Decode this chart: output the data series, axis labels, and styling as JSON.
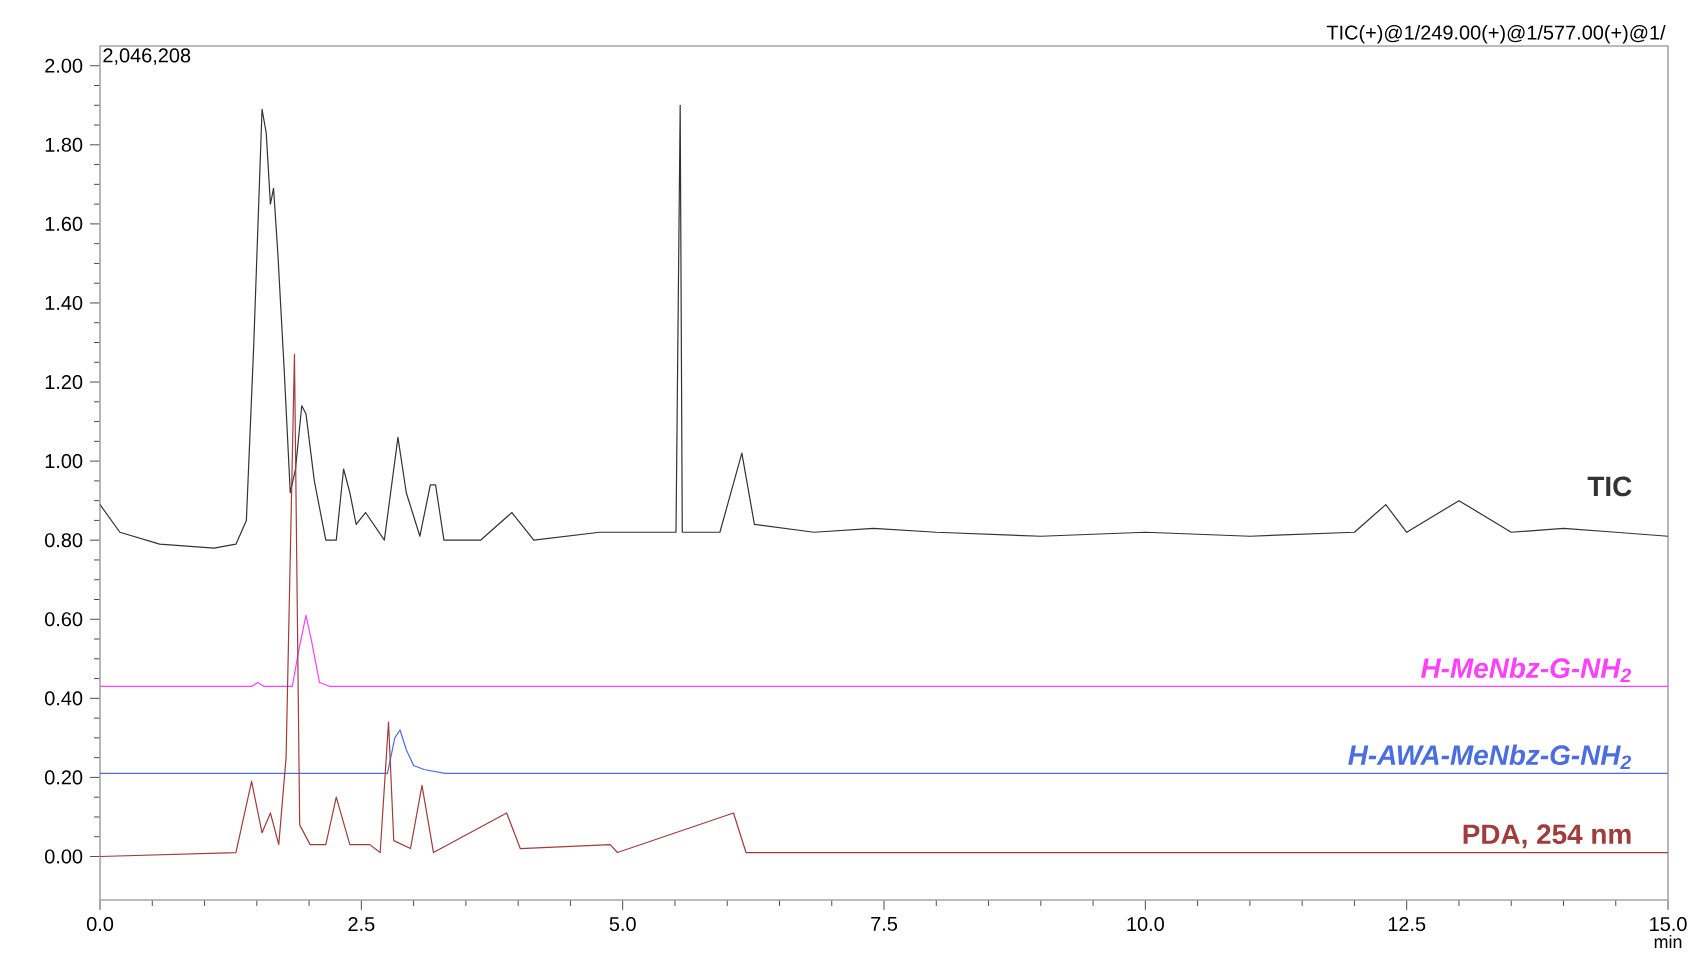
{
  "chart_data": {
    "type": "line",
    "xlabel": "min",
    "annotations": [
      "2,046,208",
      "TIC(+)@1/249.00(+)@1/577.00(+)@1/"
    ],
    "xlim": [
      0,
      15
    ],
    "ylim": [
      -0.11,
      2.05
    ],
    "xticks": [
      {
        "value": 0,
        "label": "0.0"
      },
      {
        "value": 2.5,
        "label": "2.5"
      },
      {
        "value": 5,
        "label": "5.0"
      },
      {
        "value": 7.5,
        "label": "7.5"
      },
      {
        "value": 10,
        "label": "10.0"
      },
      {
        "value": 12.5,
        "label": "12.5"
      },
      {
        "value": 15,
        "label": "15.0"
      }
    ],
    "yticks": [
      {
        "value": 0,
        "label": "0.00"
      },
      {
        "value": 0.2,
        "label": "0.20"
      },
      {
        "value": 0.4,
        "label": "0.40"
      },
      {
        "value": 0.6,
        "label": "0.60"
      },
      {
        "value": 0.8,
        "label": "0.80"
      },
      {
        "value": 1.0,
        "label": "1.00"
      },
      {
        "value": 1.2,
        "label": "1.20"
      },
      {
        "value": 1.4,
        "label": "1.40"
      },
      {
        "value": 1.6,
        "label": "1.60"
      },
      {
        "value": 1.8,
        "label": "1.80"
      },
      {
        "value": 2.0,
        "label": "2.00"
      }
    ],
    "grid": false,
    "legend": false,
    "marker": "none",
    "line_style": "solid",
    "series": [
      {
        "name": "TIC",
        "color": "#333333",
        "x": [
          0,
          0.19,
          0.57,
          1.09,
          1.3,
          1.4,
          1.47,
          1.55,
          1.59,
          1.63,
          1.66,
          1.7,
          1.76,
          1.82,
          1.87,
          1.93,
          1.97,
          2.05,
          2.16,
          2.26,
          2.33,
          2.39,
          2.45,
          2.54,
          2.72,
          2.85,
          2.93,
          3.06,
          3.16,
          3.21,
          3.29,
          3.64,
          3.94,
          4.15,
          4.78,
          5.51,
          5.55,
          5.57,
          5.93,
          6.14,
          6.26,
          6.83,
          7.4,
          8.0,
          9.0,
          10.0,
          11.0,
          12.0,
          12.3,
          12.5,
          13.0,
          13.5,
          14.0,
          14.5,
          15.0
        ],
        "values": [
          0.89,
          0.82,
          0.79,
          0.78,
          0.79,
          0.85,
          1.29,
          1.89,
          1.83,
          1.65,
          1.69,
          1.53,
          1.24,
          0.92,
          0.98,
          1.14,
          1.12,
          0.95,
          0.8,
          0.8,
          0.98,
          0.92,
          0.84,
          0.87,
          0.8,
          1.06,
          0.92,
          0.81,
          0.94,
          0.94,
          0.8,
          0.8,
          0.87,
          0.8,
          0.82,
          0.82,
          1.9,
          0.82,
          0.82,
          1.02,
          0.84,
          0.82,
          0.83,
          0.82,
          0.81,
          0.82,
          0.81,
          0.82,
          0.89,
          0.82,
          0.9,
          0.82,
          0.83,
          0.82,
          0.81
        ]
      },
      {
        "name": "*H-MeNbz-G-NH$_{2}$*",
        "color": "#ff40ff",
        "x": [
          0,
          1.45,
          1.51,
          1.57,
          1.84,
          1.9,
          1.97,
          2.02,
          2.1,
          2.2,
          15
        ],
        "values": [
          0.43,
          0.43,
          0.44,
          0.43,
          0.43,
          0.52,
          0.61,
          0.55,
          0.44,
          0.43,
          0.43
        ]
      },
      {
        "name": "*H-AWA-MeNbz-G-NH$_{2}$*",
        "color": "#4a6ee0",
        "x": [
          0,
          2.75,
          2.82,
          2.87,
          2.93,
          3.0,
          3.1,
          3.3,
          15
        ],
        "values": [
          0.21,
          0.21,
          0.3,
          0.32,
          0.27,
          0.23,
          0.22,
          0.21,
          0.21
        ]
      },
      {
        "name": "PDA, 254 nm",
        "color": "#a03c3c",
        "x": [
          0,
          1.3,
          1.45,
          1.55,
          1.63,
          1.71,
          1.78,
          1.86,
          1.91,
          2.01,
          2.16,
          2.26,
          2.39,
          2.58,
          2.68,
          2.76,
          2.81,
          2.97,
          3.08,
          3.19,
          3.89,
          4.02,
          4.88,
          4.95,
          6.06,
          6.18,
          15
        ],
        "values": [
          0,
          0.01,
          0.19,
          0.06,
          0.11,
          0.03,
          0.25,
          1.27,
          0.08,
          0.03,
          0.03,
          0.15,
          0.03,
          0.03,
          0.01,
          0.34,
          0.04,
          0.02,
          0.18,
          0.01,
          0.11,
          0.02,
          0.03,
          0.01,
          0.11,
          0.01,
          0.01
        ]
      }
    ]
  }
}
